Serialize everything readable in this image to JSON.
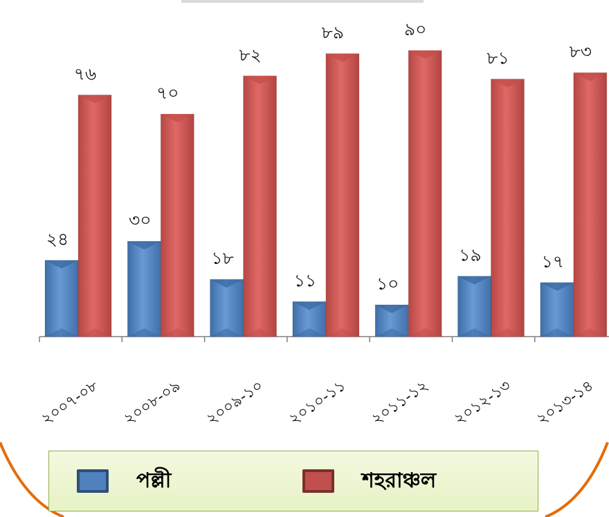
{
  "chart_data": {
    "type": "bar",
    "categories": [
      "২০০৭-০৮",
      "২০০৮-০৯",
      "২০০৯-১০",
      "২০১০-১১",
      "২০১১-১২",
      "২০১২-১৩",
      "২০১৩-১৪"
    ],
    "series": [
      {
        "name": "পল্লী",
        "values": [
          24,
          30,
          18,
          11,
          10,
          19,
          17
        ],
        "labels": [
          "২৪",
          "৩০",
          "১৮",
          "১১",
          "১০",
          "১৯",
          "১৭"
        ],
        "color": "#4f81bd"
      },
      {
        "name": "শহরাঞ্চল",
        "values": [
          76,
          70,
          82,
          89,
          90,
          81,
          83
        ],
        "labels": [
          "৭৬",
          "৭০",
          "৮২",
          "৮৯",
          "৯০",
          "৮১",
          "৮৩"
        ],
        "color": "#c0504d"
      }
    ],
    "ylim": [
      0,
      100
    ],
    "grid": false,
    "legend_position": "bottom",
    "frame_color": "#e46c0a"
  }
}
